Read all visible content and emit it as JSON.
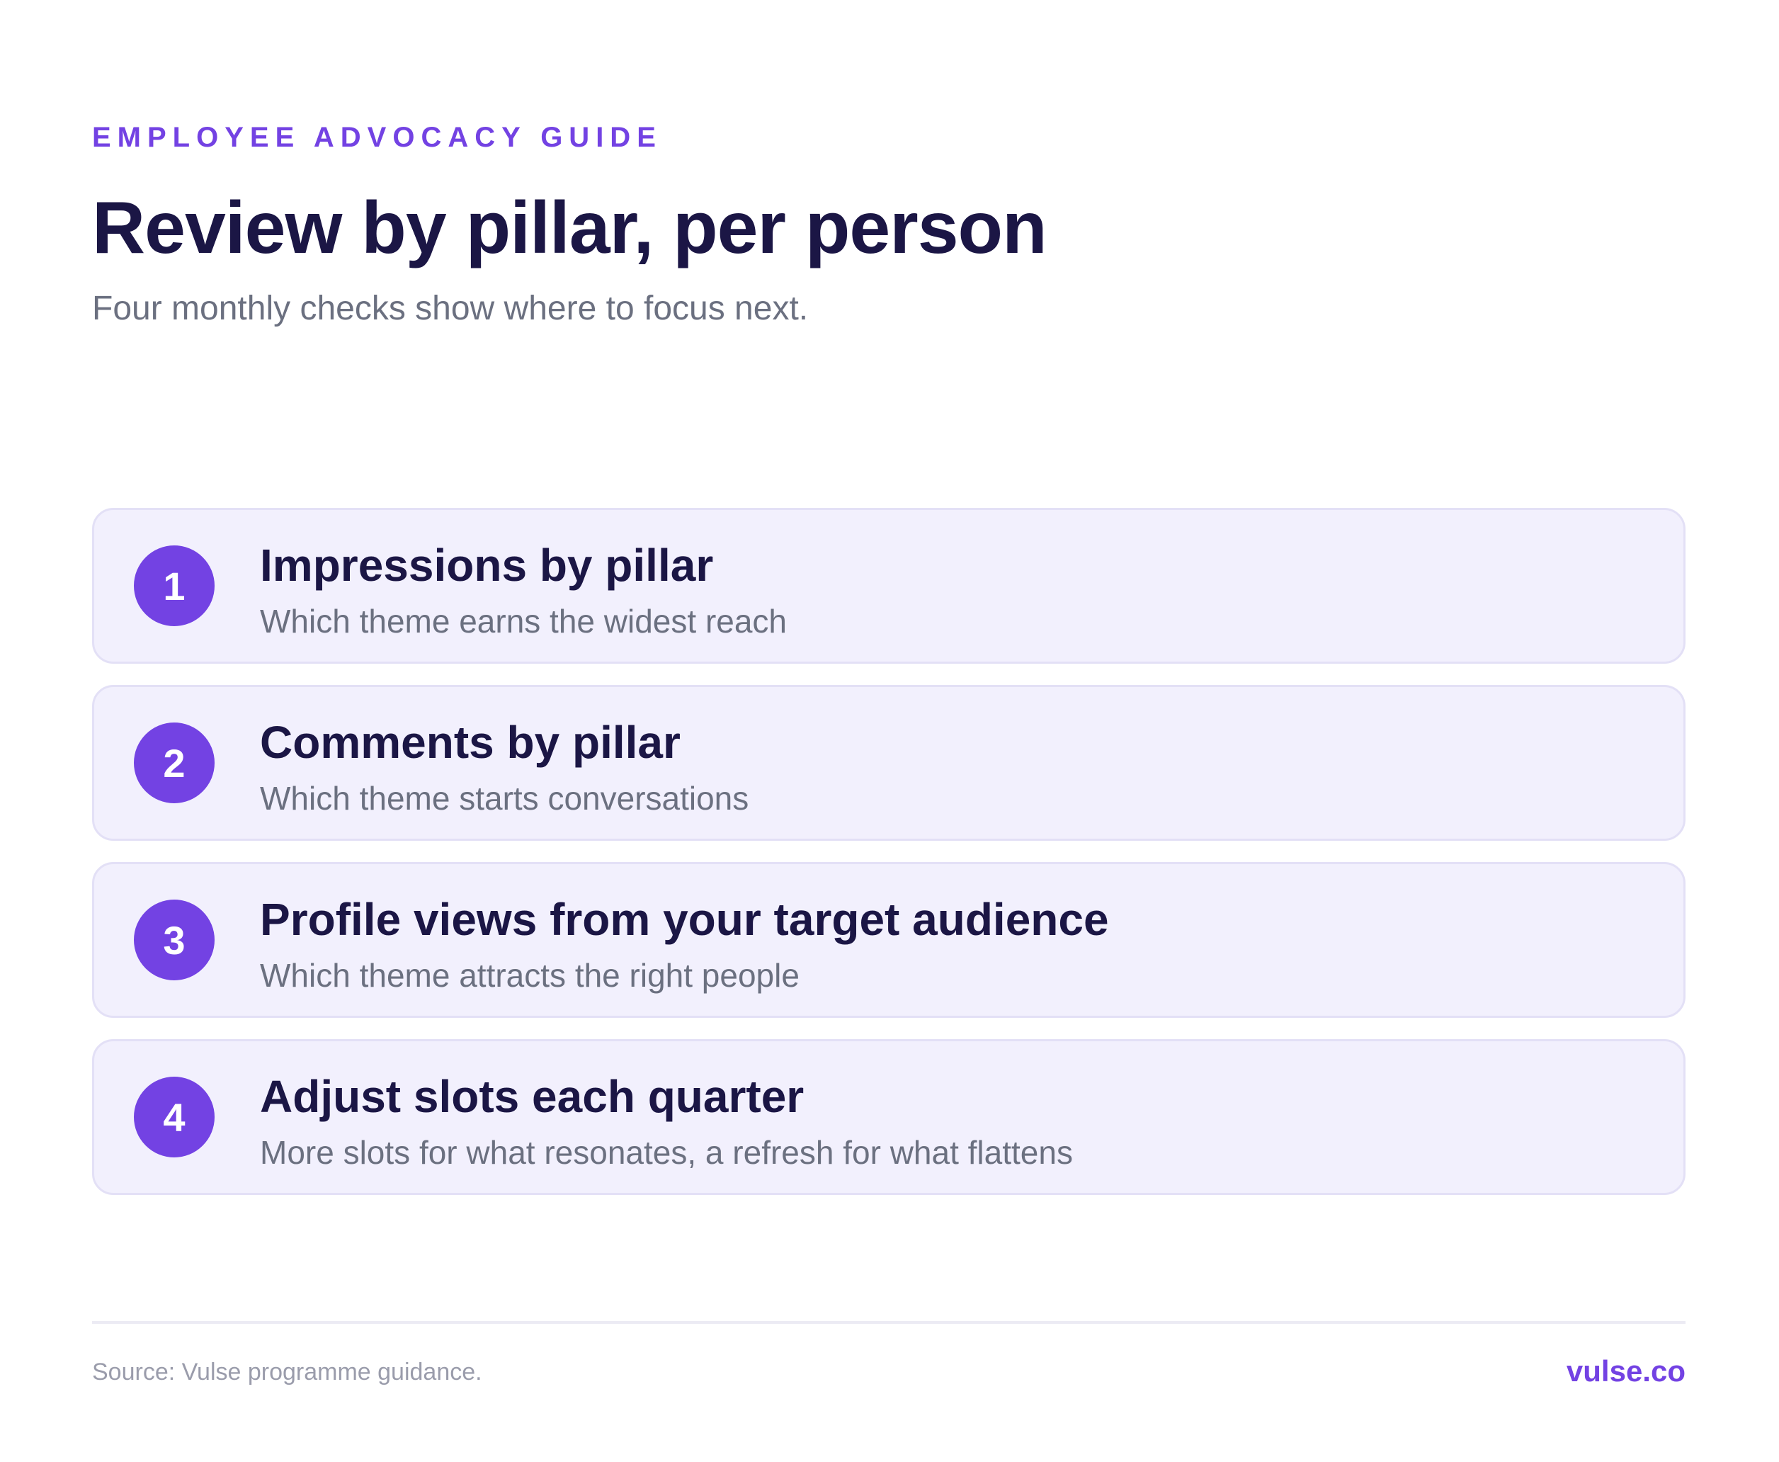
{
  "header": {
    "eyebrow": "EMPLOYEE ADVOCACY GUIDE",
    "title": "Review by pillar, per person",
    "subtitle": "Four monthly checks show where to focus next."
  },
  "steps": [
    {
      "number": "1",
      "title": "Impressions by pillar",
      "description": "Which theme earns the widest reach"
    },
    {
      "number": "2",
      "title": "Comments by pillar",
      "description": "Which theme starts conversations"
    },
    {
      "number": "3",
      "title": "Profile views from your target audience",
      "description": "Which theme attracts the right people"
    },
    {
      "number": "4",
      "title": "Adjust slots each quarter",
      "description": "More slots for what resonates, a refresh for what flattens"
    }
  ],
  "footer": {
    "source": "Source: Vulse programme guidance.",
    "brand": "vulse.co"
  },
  "colors": {
    "accent": "#7342e3",
    "heading": "#1b1645",
    "muted": "#6b7080",
    "card_background": "#f2f0fd",
    "card_border": "#e3e0f6"
  }
}
